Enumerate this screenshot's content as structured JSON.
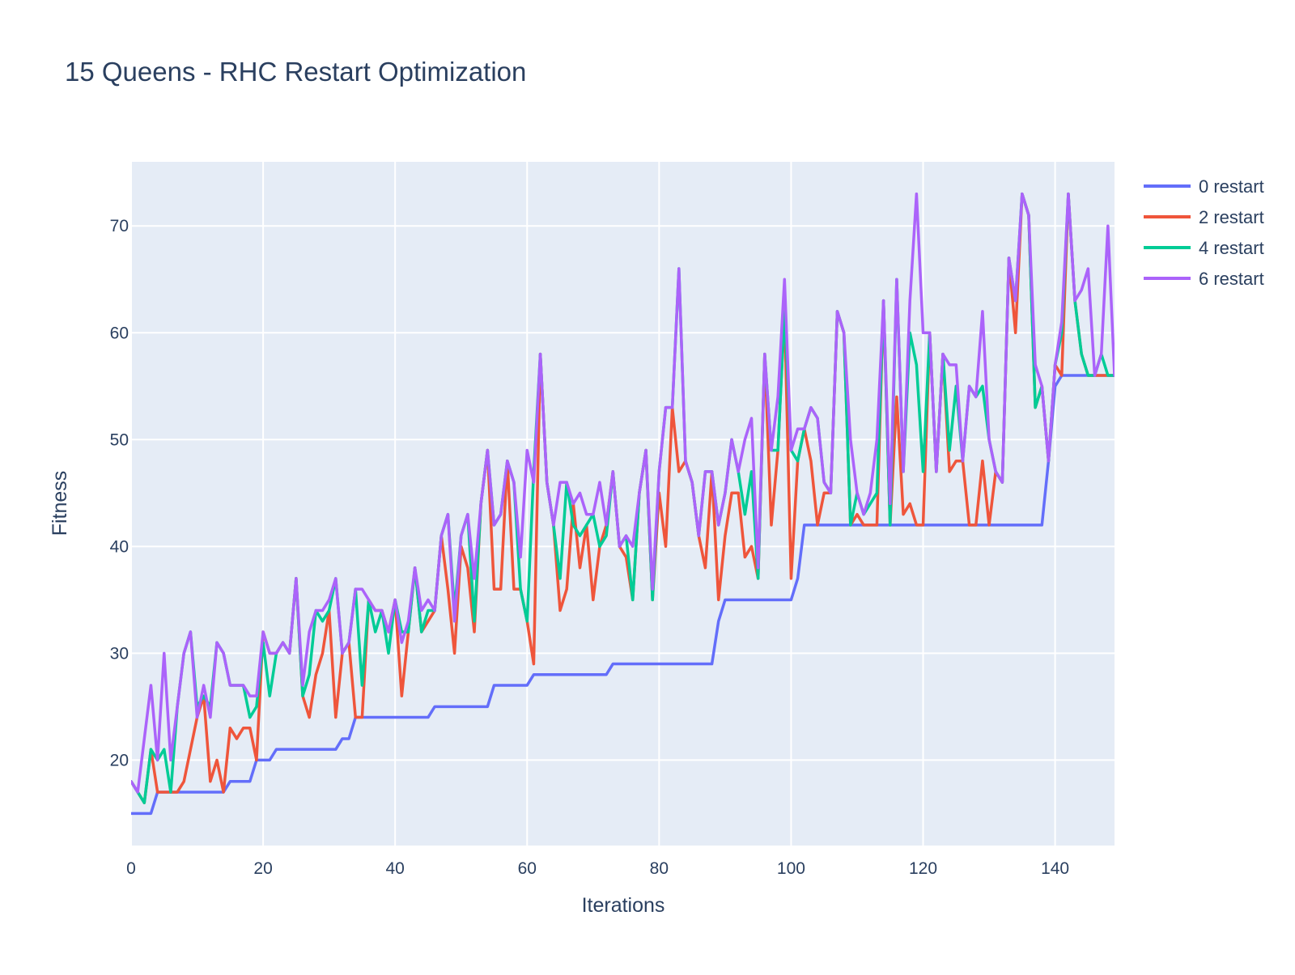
{
  "chart_data": {
    "type": "line",
    "title": "15 Queens - RHC Restart Optimization",
    "xlabel": "Iterations",
    "ylabel": "Fitness",
    "xlim": [
      0,
      149
    ],
    "ylim": [
      12,
      76
    ],
    "xticks": [
      0,
      20,
      40,
      60,
      80,
      100,
      120,
      140
    ],
    "yticks": [
      20,
      30,
      40,
      50,
      60,
      70
    ],
    "grid": true,
    "legend_position": "top-right",
    "series": [
      {
        "name": "0 restart",
        "color": "#636efa",
        "values": [
          15,
          15,
          15,
          15,
          17,
          17,
          17,
          17,
          17,
          17,
          17,
          17,
          17,
          17,
          17,
          18,
          18,
          18,
          18,
          20,
          20,
          20,
          21,
          21,
          21,
          21,
          21,
          21,
          21,
          21,
          21,
          21,
          22,
          22,
          24,
          24,
          24,
          24,
          24,
          24,
          24,
          24,
          24,
          24,
          24,
          24,
          25,
          25,
          25,
          25,
          25,
          25,
          25,
          25,
          25,
          27,
          27,
          27,
          27,
          27,
          27,
          28,
          28,
          28,
          28,
          28,
          28,
          28,
          28,
          28,
          28,
          28,
          28,
          29,
          29,
          29,
          29,
          29,
          29,
          29,
          29,
          29,
          29,
          29,
          29,
          29,
          29,
          29,
          29,
          33,
          35,
          35,
          35,
          35,
          35,
          35,
          35,
          35,
          35,
          35,
          35,
          37,
          42,
          42,
          42,
          42,
          42,
          42,
          42,
          42,
          42,
          42,
          42,
          42,
          42,
          42,
          42,
          42,
          42,
          42,
          42,
          42,
          42,
          42,
          42,
          42,
          42,
          42,
          42,
          42,
          42,
          42,
          42,
          42,
          42,
          42,
          42,
          42,
          42,
          48,
          55,
          56,
          56,
          56,
          56,
          56,
          56,
          56,
          56,
          56
        ]
      },
      {
        "name": "2 restart",
        "color": "#ef553b",
        "values": [
          18,
          17,
          16,
          21,
          17,
          17,
          17,
          17,
          18,
          21,
          24,
          26,
          18,
          20,
          17,
          23,
          22,
          23,
          23,
          20,
          32,
          30,
          30,
          31,
          30,
          37,
          26,
          24,
          28,
          30,
          34,
          24,
          30,
          31,
          24,
          24,
          35,
          34,
          34,
          32,
          35,
          26,
          32,
          38,
          32,
          33,
          34,
          41,
          36,
          30,
          40,
          38,
          32,
          44,
          49,
          36,
          36,
          48,
          36,
          36,
          33,
          29,
          58,
          46,
          42,
          34,
          36,
          44,
          38,
          42,
          35,
          40,
          42,
          47,
          40,
          39,
          35,
          45,
          49,
          35,
          45,
          40,
          53,
          47,
          48,
          46,
          41,
          38,
          47,
          35,
          41,
          45,
          45,
          39,
          40,
          37,
          58,
          42,
          49,
          62,
          37,
          48,
          51,
          48,
          42,
          45,
          45,
          62,
          60,
          42,
          43,
          42,
          42,
          42,
          63,
          42,
          54,
          43,
          44,
          42,
          42,
          60,
          47,
          58,
          47,
          48,
          48,
          42,
          42,
          48,
          42,
          47,
          46,
          67,
          60,
          73,
          71,
          53,
          55,
          48,
          57,
          56,
          73,
          63,
          58,
          56,
          56,
          56,
          56,
          56
        ]
      },
      {
        "name": "4 restart",
        "color": "#00cc96",
        "values": [
          18,
          17,
          16,
          21,
          20,
          21,
          17,
          25,
          30,
          32,
          25,
          26,
          25,
          31,
          30,
          27,
          27,
          27,
          24,
          25,
          31,
          26,
          30,
          31,
          30,
          37,
          26,
          28,
          34,
          33,
          34,
          37,
          30,
          31,
          36,
          27,
          35,
          32,
          34,
          30,
          35,
          32,
          32,
          38,
          32,
          34,
          34,
          41,
          43,
          34,
          41,
          43,
          33,
          44,
          49,
          42,
          43,
          48,
          46,
          36,
          33,
          47,
          58,
          46,
          42,
          37,
          46,
          42,
          41,
          42,
          43,
          40,
          41,
          47,
          40,
          41,
          35,
          45,
          49,
          35,
          47,
          53,
          53,
          66,
          48,
          46,
          41,
          47,
          47,
          42,
          45,
          50,
          47,
          43,
          47,
          37,
          58,
          49,
          49,
          62,
          49,
          48,
          51,
          53,
          52,
          46,
          45,
          62,
          60,
          42,
          45,
          43,
          44,
          45,
          63,
          42,
          65,
          47,
          60,
          57,
          47,
          60,
          47,
          58,
          49,
          55,
          48,
          55,
          54,
          55,
          50,
          47,
          46,
          67,
          63,
          73,
          71,
          53,
          55,
          48,
          57,
          60,
          73,
          63,
          58,
          56,
          56,
          58,
          56,
          56
        ]
      },
      {
        "name": "6 restart",
        "color": "#ab63fa",
        "values": [
          18,
          17,
          22,
          27,
          20,
          30,
          20,
          25,
          30,
          32,
          24,
          27,
          24,
          31,
          30,
          27,
          27,
          27,
          26,
          26,
          32,
          30,
          30,
          31,
          30,
          37,
          27,
          32,
          34,
          34,
          35,
          37,
          30,
          31,
          36,
          36,
          35,
          34,
          34,
          32,
          35,
          31,
          33,
          38,
          34,
          35,
          34,
          41,
          43,
          33,
          41,
          43,
          37,
          44,
          49,
          42,
          43,
          48,
          46,
          39,
          49,
          46,
          58,
          46,
          42,
          46,
          46,
          44,
          45,
          43,
          43,
          46,
          42,
          47,
          40,
          41,
          40,
          45,
          49,
          36,
          47,
          53,
          53,
          66,
          48,
          46,
          41,
          47,
          47,
          42,
          45,
          50,
          47,
          50,
          52,
          38,
          58,
          49,
          54,
          65,
          49,
          51,
          51,
          53,
          52,
          46,
          45,
          62,
          60,
          50,
          45,
          43,
          45,
          50,
          63,
          44,
          65,
          47,
          63,
          73,
          60,
          60,
          47,
          58,
          57,
          57,
          48,
          55,
          54,
          62,
          50,
          47,
          46,
          67,
          63,
          73,
          71,
          57,
          55,
          48,
          57,
          61,
          73,
          63,
          64,
          66,
          56,
          58,
          70,
          56
        ]
      }
    ]
  }
}
